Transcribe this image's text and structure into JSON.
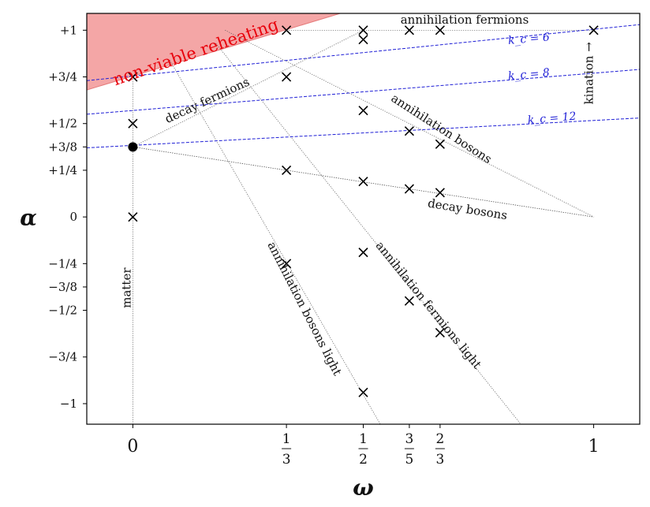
{
  "chart_data": {
    "type": "scatter",
    "xlabel": "ω",
    "ylabel": "α",
    "xlim": [
      -0.1,
      1.1
    ],
    "ylim": [
      -1.11,
      1.09
    ],
    "grid": false,
    "x_ticks": [
      {
        "value": 0,
        "num": "0",
        "den": ""
      },
      {
        "value": 0.3333,
        "num": "1",
        "den": "3"
      },
      {
        "value": 0.5,
        "num": "1",
        "den": "2"
      },
      {
        "value": 0.6,
        "num": "3",
        "den": "5"
      },
      {
        "value": 0.6667,
        "num": "2",
        "den": "3"
      },
      {
        "value": 1,
        "num": "1",
        "den": ""
      }
    ],
    "y_ticks": [
      {
        "value": 1,
        "label": "+1"
      },
      {
        "value": 0.75,
        "label": "+3/4"
      },
      {
        "value": 0.5,
        "label": "+1/2"
      },
      {
        "value": 0.375,
        "label": "+3/8"
      },
      {
        "value": 0.25,
        "label": "+1/4"
      },
      {
        "value": 0,
        "label": "0"
      },
      {
        "value": -0.25,
        "label": "−1/4"
      },
      {
        "value": -0.375,
        "label": "−3/8"
      },
      {
        "value": -0.5,
        "label": "−1/2"
      },
      {
        "value": -0.75,
        "label": "−3/4"
      },
      {
        "value": -1,
        "label": "−1"
      }
    ],
    "points": [
      {
        "x": 0,
        "y": 0.75
      },
      {
        "x": 0,
        "y": 0.5
      },
      {
        "x": 0,
        "y": 0
      },
      {
        "x": 0.3333,
        "y": 1
      },
      {
        "x": 0.3333,
        "y": 0.75
      },
      {
        "x": 0.3333,
        "y": 0.25
      },
      {
        "x": 0.3333,
        "y": -0.25
      },
      {
        "x": 0.5,
        "y": 1
      },
      {
        "x": 0.5,
        "y": 0.95
      },
      {
        "x": 0.5,
        "y": 0.57
      },
      {
        "x": 0.5,
        "y": 0.19
      },
      {
        "x": 0.5,
        "y": -0.19
      },
      {
        "x": 0.5,
        "y": -0.94
      },
      {
        "x": 0.6,
        "y": 1
      },
      {
        "x": 0.6,
        "y": 0.46
      },
      {
        "x": 0.6,
        "y": 0.15
      },
      {
        "x": 0.6,
        "y": -0.45
      },
      {
        "x": 0.6667,
        "y": 1
      },
      {
        "x": 0.6667,
        "y": 0.39
      },
      {
        "x": 0.6667,
        "y": 0.13
      },
      {
        "x": 0.6667,
        "y": -0.62
      },
      {
        "x": 1,
        "y": 1
      }
    ],
    "special_point": {
      "x": 0,
      "y": 0.375
    },
    "dotted_lines": [
      {
        "name": "matter",
        "x1": 0,
        "y1": 0.75,
        "x2": 0,
        "y2": -1.11
      },
      {
        "name": "kination-top",
        "x1": 0.3333,
        "y1": 1,
        "x2": 1,
        "y2": 1
      },
      {
        "name": "decay-fermions",
        "x1": 0,
        "y1": 0.375,
        "x2": 0.5,
        "y2": 1.0
      },
      {
        "name": "decay-bosons",
        "x1": 0,
        "y1": 0.375,
        "x2": 1,
        "y2": 0
      },
      {
        "name": "decay-bosons-return",
        "x1": 0,
        "y1": 0.375,
        "x2": 1,
        "y2": 0
      },
      {
        "name": "annihilation-bosons",
        "x1": 0.2,
        "y1": 1,
        "x2": 1,
        "y2": 0
      },
      {
        "name": "annihilation-bosons-light",
        "x1": 0.08,
        "y1": 0.84,
        "x2": 0.537,
        "y2": -1.11
      },
      {
        "name": "annihilation-fermions-light",
        "x1": 0.18,
        "y1": 0.93,
        "x2": 0.842,
        "y2": -1.11
      }
    ],
    "kc_lines": [
      {
        "label": "k_c = 6",
        "x1": -0.1,
        "y1": 0.73,
        "x2": 1.1,
        "y2": 1.03
      },
      {
        "label": "k_c = 8",
        "x1": -0.1,
        "y1": 0.55,
        "x2": 1.1,
        "y2": 0.79
      },
      {
        "label": "k_c = 12",
        "x1": -0.1,
        "y1": 0.37,
        "x2": 1.1,
        "y2": 0.53
      }
    ],
    "non_viable_region": {
      "label": "non-viable reheating",
      "polygon": [
        [
          -0.1,
          0.68
        ],
        [
          -0.1,
          1.09
        ],
        [
          0.45,
          1.09
        ]
      ]
    },
    "annotations": {
      "annihilation_fermions": "annihilation fermions",
      "decay_fermions": "decay fermions",
      "annihilation_bosons": "annihilation bosons",
      "decay_bosons": "decay bosons",
      "annihilation_bosons_light": "annihilation bosons light",
      "annihilation_fermions_light": "annihilation fermions light",
      "matter": "matter",
      "kination": "kination →"
    },
    "colors": {
      "region": "#f4a6a6",
      "region_text": "#e8000b",
      "kc": "#1f1fd6",
      "marker": "#000000"
    }
  }
}
